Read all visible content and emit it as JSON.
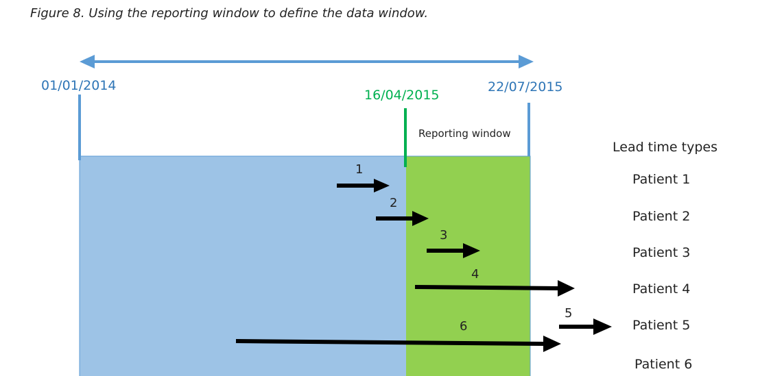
{
  "caption": "Figure 8. Using the reporting window to define the data window.",
  "dates": {
    "start": "01/01/2014",
    "cutoff": "16/04/2015",
    "end": "22/07/2015"
  },
  "reporting_window_label": "Reporting window",
  "lead_time_header": "Lead time types",
  "patients": [
    "Patient 1",
    "Patient 2",
    "Patient 3",
    "Patient 4",
    "Patient 5",
    "Patient 6"
  ],
  "arrow_numbers": [
    "1",
    "2",
    "3",
    "4",
    "5",
    "6"
  ],
  "colors": {
    "data_region": "#9DC3E6",
    "reporting_region": "#92D050",
    "timeline": "#5B9BD5",
    "cutoff_line": "#00B050",
    "arrows": "#000000"
  }
}
